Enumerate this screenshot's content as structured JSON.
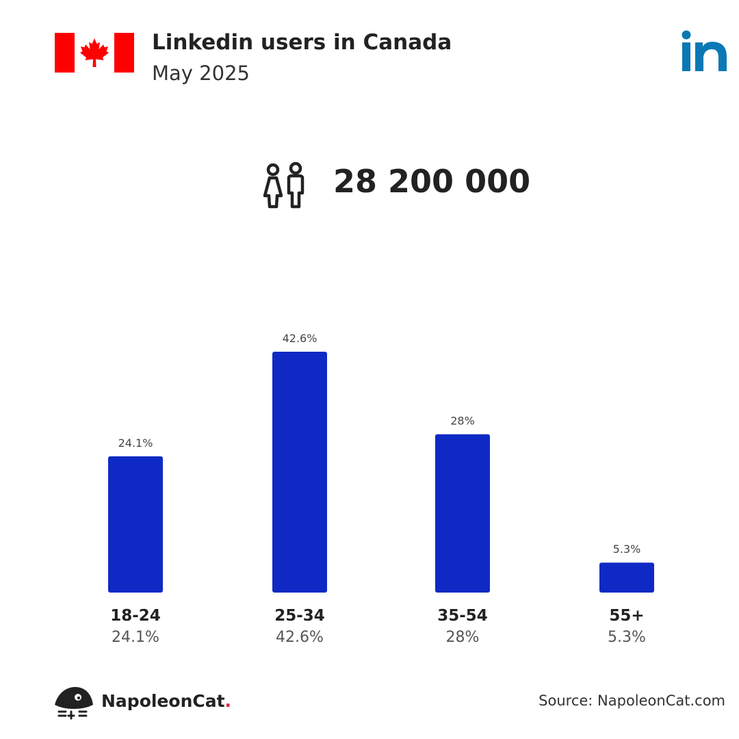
{
  "header": {
    "title": "Linkedin users in Canada",
    "subtitle": "May 2025",
    "flag_icon": "canada-flag-icon",
    "logo_icon": "linkedin-logo-icon"
  },
  "summary": {
    "icon": "people-icon",
    "total_users": "28 200 000"
  },
  "chart_data": {
    "type": "bar",
    "categories": [
      "18-24",
      "25-34",
      "35-54",
      "55+"
    ],
    "values": [
      24.1,
      42.6,
      28,
      5.3
    ],
    "value_labels": [
      "24.1%",
      "42.6%",
      "28%",
      "5.3%"
    ],
    "title": "",
    "xlabel": "",
    "ylabel": "",
    "ylim": [
      0,
      42.6
    ],
    "grid": false,
    "legend": "none"
  },
  "colors": {
    "bar": "#0f2ac4",
    "text_dark": "#222222",
    "text_muted": "#555555",
    "flag_red": "#ff0000",
    "linkedin_blue": "#0a78b5",
    "brand_dot": "#e3202f"
  },
  "footer": {
    "brand_name": "NapoleonCat",
    "brand_dot": ".",
    "source": "Source: NapoleonCat.com"
  }
}
